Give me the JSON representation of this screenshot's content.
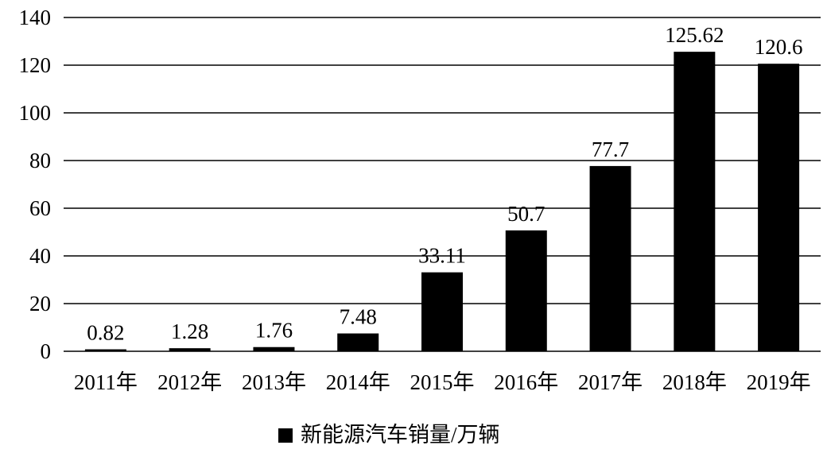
{
  "chart_data": {
    "type": "bar",
    "categories": [
      "2011年",
      "2012年",
      "2013年",
      "2014年",
      "2015年",
      "2016年",
      "2017年",
      "2018年",
      "2019年"
    ],
    "series": [
      {
        "name": "新能源汽车销量/万辆",
        "values": [
          0.82,
          1.28,
          1.76,
          7.48,
          33.11,
          50.7,
          77.7,
          125.62,
          120.6
        ],
        "labels": [
          "0.82",
          "1.28",
          "1.76",
          "7.48",
          "33.11",
          "50.7",
          "77.7",
          "125.62",
          "120.6"
        ],
        "color": "#000000"
      }
    ],
    "yticks": [
      "0",
      "20",
      "40",
      "60",
      "80",
      "100",
      "120",
      "140"
    ],
    "ylim": [
      0,
      140
    ],
    "grid": true,
    "legend_position": "bottom-center"
  }
}
